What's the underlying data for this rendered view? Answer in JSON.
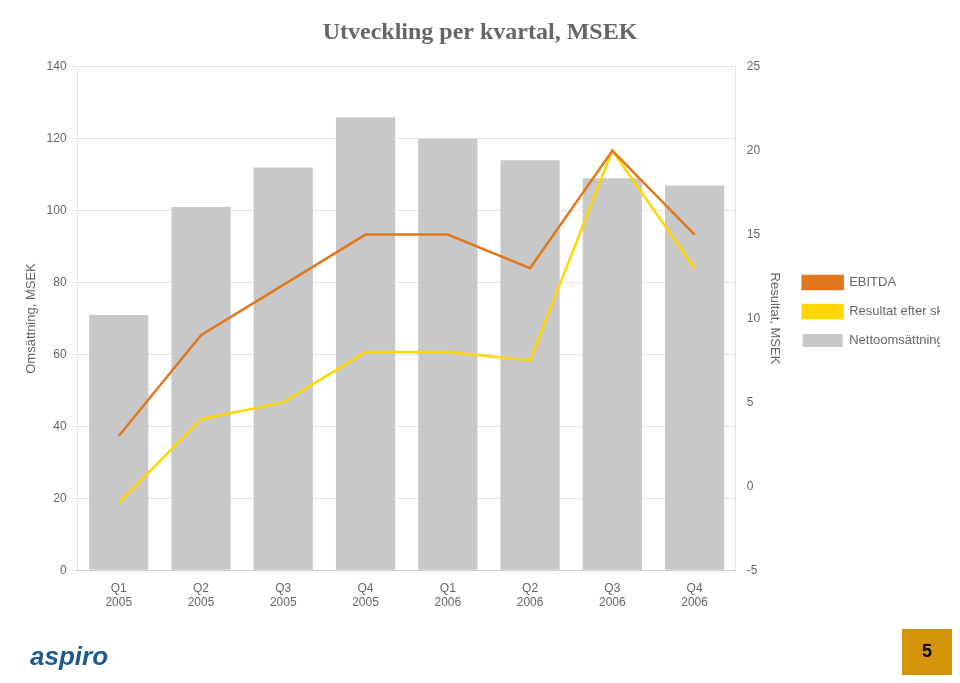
{
  "chart_data": {
    "type": "bar",
    "title": "Utveckling per kvartal, MSEK",
    "ylabel": "Omsättning, MSEK",
    "y2label": "Resultat, MSEK",
    "categories": [
      "Q1\n2005",
      "Q2\n2005",
      "Q3\n2005",
      "Q4\n2005",
      "Q1\n2006",
      "Q2\n2006",
      "Q3\n2006",
      "Q4\n2006"
    ],
    "series": [
      {
        "name": "Nettoomsättning",
        "type": "bar",
        "color": "#C8C8C8",
        "values": [
          71,
          101,
          112,
          126,
          120,
          114,
          109,
          107
        ]
      },
      {
        "name": "EBITDA",
        "type": "line",
        "axis": "y2",
        "color": "#E07820",
        "values": [
          3,
          9,
          12,
          15,
          15,
          13,
          20,
          15
        ]
      },
      {
        "name": "Resultat efter skatt",
        "type": "line",
        "axis": "y2",
        "color": "#FFD700",
        "values": [
          -1,
          4,
          5,
          8,
          8,
          7.5,
          20,
          13
        ]
      }
    ],
    "ylim": [
      0,
      140
    ],
    "yticks": [
      0,
      20,
      40,
      60,
      80,
      100,
      120,
      140
    ],
    "y2lim": [
      -5,
      25
    ],
    "y2ticks": [
      -5,
      0,
      5,
      10,
      15,
      20,
      25
    ],
    "grid": true,
    "legend": "right",
    "annotations": [
      "aspiro",
      "5"
    ]
  }
}
